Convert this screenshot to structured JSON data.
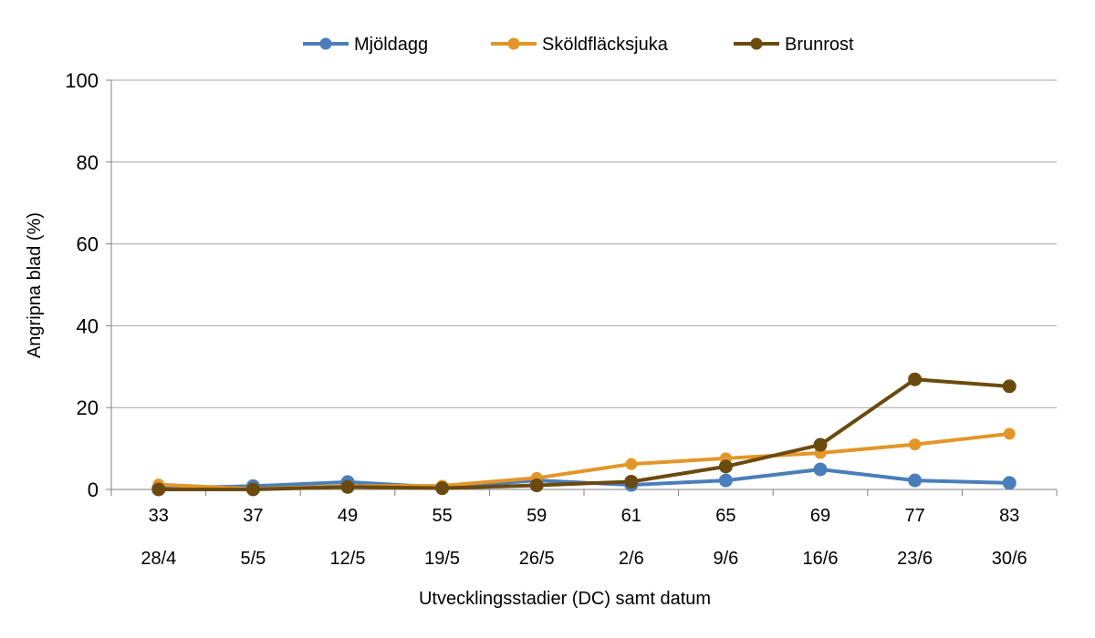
{
  "chart_data": {
    "type": "line",
    "title": "",
    "xlabel": "Utvecklingsstadier (DC) samt datum",
    "ylabel": "Angripna blad (%)",
    "ylim": [
      0,
      100
    ],
    "yticks": [
      0,
      20,
      40,
      60,
      80,
      100
    ],
    "grid": true,
    "legend_position": "top",
    "categories": [
      "33",
      "37",
      "49",
      "55",
      "59",
      "61",
      "65",
      "69",
      "77",
      "83"
    ],
    "category_dates": [
      "28/4",
      "5/5",
      "12/5",
      "19/5",
      "26/5",
      "2/6",
      "9/6",
      "16/6",
      "23/6",
      "30/6"
    ],
    "series": [
      {
        "name": "Mjöldagg",
        "color": "#4a7ebb",
        "values": [
          0.3,
          0.8,
          1.8,
          0.5,
          2.2,
          1.1,
          2.2,
          4.9,
          2.2,
          1.6
        ]
      },
      {
        "name": "Sköldfläcksjuka",
        "color": "#e39628",
        "values": [
          1.2,
          0.1,
          0.8,
          0.9,
          2.8,
          6.2,
          7.6,
          8.9,
          11.0,
          13.6
        ]
      },
      {
        "name": "Brunrost",
        "color": "#6b4a0f",
        "values": [
          0.0,
          0.0,
          0.6,
          0.3,
          1.0,
          1.9,
          5.6,
          10.9,
          26.9,
          25.2
        ]
      }
    ]
  }
}
